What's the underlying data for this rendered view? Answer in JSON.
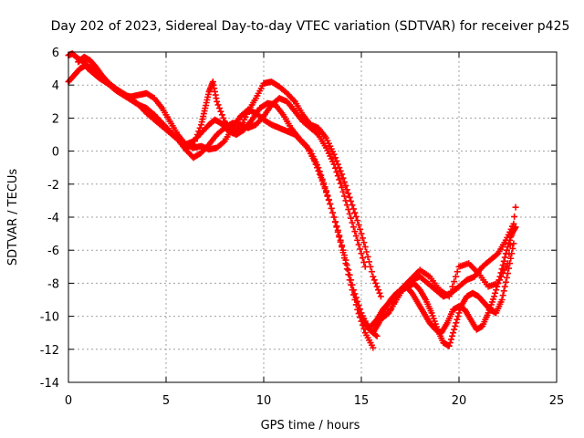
{
  "chart_data": {
    "type": "scatter",
    "title": "Day 202 of 2023, Sidereal Day-to-day VTEC variation (SDTVAR) for receiver p425",
    "xlabel": "GPS time / hours",
    "ylabel": "SDTVAR / TECUs",
    "xlim": [
      0,
      25
    ],
    "ylim": [
      -14,
      6
    ],
    "xticks": [
      0,
      5,
      10,
      15,
      20,
      25
    ],
    "yticks": [
      -14,
      -12,
      -10,
      -8,
      -6,
      -4,
      -2,
      0,
      2,
      4,
      6
    ],
    "grid": true,
    "marker": "+",
    "color": "#ff0000",
    "series": [
      {
        "x": [
          0.0,
          0.2,
          0.5,
          0.8,
          1.0,
          1.3,
          1.6,
          2.0,
          2.4,
          2.8,
          3.2,
          3.6,
          4.0,
          4.4,
          4.8,
          5.2,
          5.6,
          6.0,
          6.4,
          6.8,
          7.2,
          7.5,
          7.8,
          8.2,
          8.6,
          9.0,
          9.4,
          9.8,
          10.2,
          10.6,
          11.0,
          11.4,
          11.8,
          12.2,
          12.6,
          13.0,
          13.4,
          13.8,
          14.2,
          14.6,
          15.0,
          15.4,
          15.8
        ],
        "y": [
          5.8,
          5.9,
          5.6,
          5.4,
          5.0,
          4.7,
          4.4,
          4.1,
          3.8,
          3.5,
          3.2,
          2.8,
          2.3,
          1.9,
          1.5,
          1.1,
          0.7,
          0.4,
          0.6,
          1.1,
          1.6,
          1.9,
          1.7,
          1.2,
          1.0,
          1.3,
          1.9,
          2.6,
          2.9,
          2.8,
          2.2,
          1.4,
          0.8,
          0.3,
          -0.6,
          -1.8,
          -3.2,
          -4.8,
          -6.6,
          -8.4,
          -9.8,
          -10.8,
          -11.2
        ]
      },
      {
        "x": [
          0.0,
          0.3,
          0.6,
          0.9,
          1.2,
          1.6,
          2.0,
          2.4,
          2.8,
          3.2,
          3.6,
          4.0,
          4.4,
          4.8,
          5.2,
          5.6,
          6.0,
          6.4,
          6.8,
          7.2,
          7.6,
          8.0,
          8.4,
          8.8,
          9.2,
          9.6,
          10.0,
          10.4,
          10.8,
          11.2,
          11.6,
          12.0,
          12.4,
          12.8,
          13.2,
          13.6,
          14.0,
          14.4,
          14.8,
          15.2,
          15.6
        ],
        "y": [
          4.2,
          4.6,
          5.0,
          5.2,
          5.0,
          4.5,
          4.1,
          3.7,
          3.4,
          3.3,
          3.4,
          3.5,
          3.2,
          2.6,
          1.8,
          1.0,
          0.4,
          0.2,
          0.3,
          0.1,
          0.2,
          0.6,
          1.4,
          2.1,
          2.5,
          2.3,
          1.9,
          1.6,
          1.4,
          1.2,
          1.0,
          0.5,
          0.0,
          -1.0,
          -2.4,
          -4.0,
          -5.8,
          -7.8,
          -9.6,
          -11.0,
          -11.9
        ]
      },
      {
        "x": [
          0.5,
          0.8,
          1.1,
          1.4,
          1.7,
          2.0,
          2.4,
          2.8,
          3.2,
          3.6,
          4.0,
          4.4,
          4.8,
          5.2,
          5.6,
          6.0,
          6.4,
          6.8,
          7.2,
          7.6,
          8.0,
          8.4,
          8.8,
          9.2,
          9.6,
          10.0,
          10.4,
          10.8,
          11.2,
          11.6,
          12.0,
          12.4,
          12.8,
          13.2,
          13.6,
          14.0,
          14.4,
          14.8,
          15.2
        ],
        "y": [
          5.4,
          5.7,
          5.5,
          5.1,
          4.6,
          4.2,
          3.8,
          3.4,
          3.1,
          2.8,
          2.6,
          2.2,
          1.7,
          1.2,
          0.7,
          0.1,
          -0.4,
          -0.1,
          0.4,
          1.0,
          1.4,
          1.7,
          1.6,
          1.4,
          1.6,
          2.1,
          2.8,
          3.2,
          3.0,
          2.4,
          1.8,
          1.4,
          1.0,
          0.2,
          -0.8,
          -2.2,
          -3.8,
          -5.4,
          -7.0
        ]
      },
      {
        "x": [
          6.0,
          6.4,
          6.8,
          7.0,
          7.2,
          7.4,
          7.6,
          8.0,
          8.4,
          8.8,
          9.2,
          9.6,
          10.0,
          10.4,
          10.8,
          11.2,
          11.6,
          12.0,
          12.4,
          12.8,
          13.2,
          13.6,
          14.0,
          14.4,
          14.8,
          15.2,
          15.6,
          16.0
        ],
        "y": [
          0.2,
          0.4,
          1.6,
          2.6,
          3.6,
          4.2,
          3.0,
          1.8,
          1.2,
          1.4,
          2.4,
          3.2,
          4.1,
          4.2,
          3.9,
          3.5,
          3.0,
          2.2,
          1.6,
          1.4,
          0.8,
          -0.2,
          -1.4,
          -2.8,
          -4.2,
          -5.8,
          -7.6,
          -8.8
        ]
      },
      {
        "x": [
          15.0,
          15.3,
          15.6,
          15.9,
          16.2,
          16.5,
          16.8,
          17.1,
          17.4,
          17.7,
          18.0,
          18.3,
          18.6,
          18.9,
          19.2,
          19.5,
          19.8,
          20.1,
          20.4,
          20.7,
          21.0,
          21.3,
          21.6,
          21.9,
          22.2,
          22.5,
          22.8
        ],
        "y": [
          -10.0,
          -10.6,
          -11.0,
          -10.4,
          -9.6,
          -9.0,
          -8.6,
          -8.4,
          -8.2,
          -8.0,
          -8.4,
          -9.0,
          -9.8,
          -10.8,
          -11.6,
          -11.8,
          -10.6,
          -9.4,
          -8.8,
          -8.6,
          -8.8,
          -9.2,
          -9.6,
          -9.8,
          -9.0,
          -7.4,
          -5.6
        ]
      },
      {
        "x": [
          15.5,
          15.8,
          16.1,
          16.4,
          16.7,
          17.0,
          17.3,
          17.6,
          17.9,
          18.2,
          18.5,
          18.8,
          19.1,
          19.4,
          19.7,
          20.0,
          20.3,
          20.6,
          20.9,
          21.2,
          21.5,
          21.8,
          22.1,
          22.4,
          22.7,
          22.9
        ],
        "y": [
          -10.6,
          -10.2,
          -9.6,
          -9.2,
          -8.8,
          -8.4,
          -8.2,
          -8.6,
          -9.2,
          -9.8,
          -10.4,
          -10.8,
          -11.0,
          -10.4,
          -9.6,
          -9.4,
          -9.6,
          -10.2,
          -10.8,
          -10.6,
          -9.8,
          -8.8,
          -7.6,
          -6.2,
          -5.0,
          -4.6
        ]
      },
      {
        "x": [
          16.0,
          16.4,
          16.8,
          17.2,
          17.6,
          18.0,
          18.4,
          18.8,
          19.2,
          19.6,
          20.0,
          20.4,
          20.8,
          21.2,
          21.6,
          22.0,
          22.4,
          22.8
        ],
        "y": [
          -10.2,
          -9.8,
          -9.0,
          -8.2,
          -7.8,
          -7.6,
          -8.0,
          -8.4,
          -8.8,
          -8.6,
          -8.2,
          -7.8,
          -7.6,
          -7.0,
          -6.6,
          -6.2,
          -5.4,
          -4.4
        ]
      },
      {
        "x": [
          16.5,
          17.0,
          17.5,
          18.0,
          18.5,
          19.0,
          19.5,
          20.0,
          20.5,
          21.0,
          21.5,
          22.0,
          22.5,
          22.9
        ],
        "y": [
          -9.6,
          -8.4,
          -7.8,
          -7.2,
          -7.6,
          -8.4,
          -8.8,
          -7.0,
          -6.8,
          -7.4,
          -8.2,
          -8.0,
          -6.8,
          -3.4
        ]
      }
    ]
  }
}
